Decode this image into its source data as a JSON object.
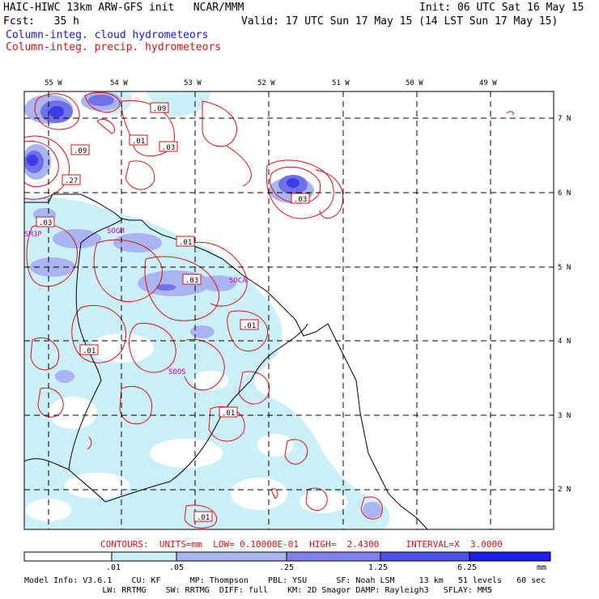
{
  "header": {
    "title_left": "HAIC-HIWC 13km ARW-GFS init   NCAR/MMM",
    "fcst": "Fcst:   35 h",
    "init": "Init: 06 UTC Sat 16 May 15",
    "valid": "Valid: 17 UTC Sun 17 May 15 (14 LST Sun 17 May 15)",
    "legend_cloud": "Column-integ. cloud hydrometeors",
    "legend_precip": "Column-integ. precip. hydrometeors",
    "colors": {
      "cloud": "#1a1acc",
      "precip": "#dd1111",
      "magenta": "#cc00cc"
    }
  },
  "map": {
    "lon_labels": [
      "55 W",
      "54 W",
      "53 W",
      "52 W",
      "51 W",
      "50 W",
      "49 W"
    ],
    "lat_labels": [
      "7 N",
      "6 N",
      "5 N",
      "4 N",
      "3 N",
      "2 N"
    ],
    "stations": [
      "SMJP",
      "SOGM",
      "SOCA",
      "SOOS"
    ],
    "contour_labels": [
      ".09",
      ".01",
      ".03",
      ".09",
      ".27",
      ".03",
      ".03",
      ".01",
      ".03",
      ".01",
      ".01",
      ".01",
      ".01"
    ]
  },
  "contour_info": "CONTOURS:  UNITS=mm  LOW= 0.10000E-01  HIGH=  2.4300     INTERVAL=X  3.0000",
  "colorbar": {
    "ticks": [
      ".01",
      ".05",
      ".25",
      "1.25",
      "6.25"
    ],
    "unit": "mm",
    "colors": [
      "#ffffff",
      "#ccf0f8",
      "#aab4f0",
      "#8080ee",
      "#5050ea",
      "#1e1ee6"
    ]
  },
  "model_info": {
    "line1": "Model Info: V3.6.1    CU: KF      MP: Thompson    PBL: YSU      SF: Noah LSM     13 km   51 levels   60 sec",
    "line2": "                LW: RRTMG    SW: RRTMG  DIFF: full    KM: 2D Smagor DAMP: Rayleigh3   SFLAY: MM5"
  }
}
